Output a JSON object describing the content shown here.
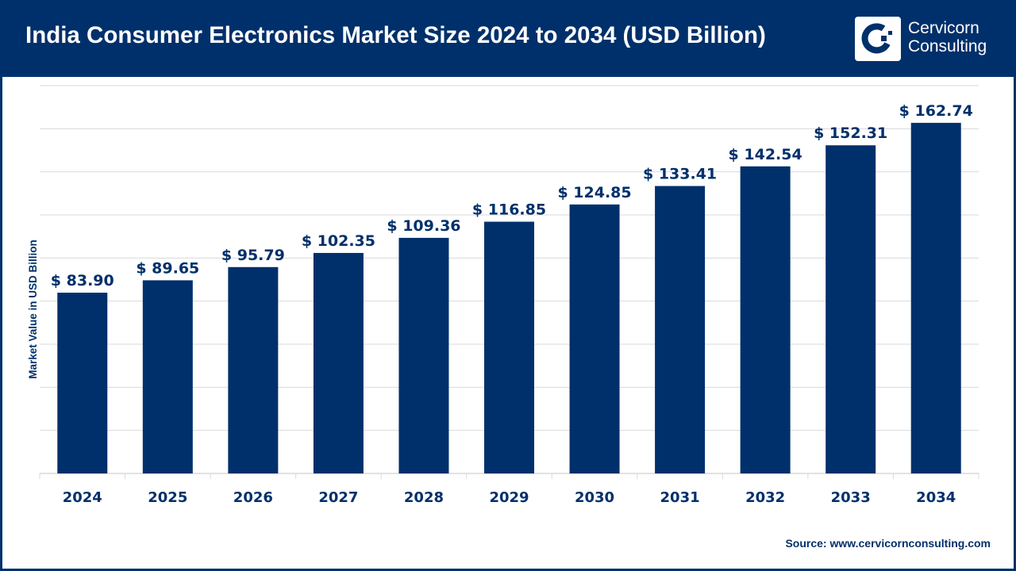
{
  "header": {
    "title": "India Consumer Electronics Market Size 2024 to 2034 (USD Billion)"
  },
  "logo": {
    "line1": "Cervicorn",
    "line2": "Consulting"
  },
  "source": "Source: www.cervicornconsulting.com",
  "colors": {
    "primary": "#00306b",
    "grid": "#d9d9d9"
  },
  "chart_data": {
    "type": "bar",
    "title": "India Consumer Electronics Market Size 2024 to 2034 (USD Billion)",
    "xlabel": "",
    "ylabel": "Market Value in USD Billion",
    "categories": [
      "2024",
      "2025",
      "2026",
      "2027",
      "2028",
      "2029",
      "2030",
      "2031",
      "2032",
      "2033",
      "2034"
    ],
    "values": [
      83.9,
      89.65,
      95.79,
      102.35,
      109.36,
      116.85,
      124.85,
      133.41,
      142.54,
      152.31,
      162.74
    ],
    "data_labels": [
      "$ 83.90",
      "$ 89.65",
      "$ 95.79",
      "$ 102.35",
      "$ 109.36",
      "$ 116.85",
      "$ 124.85",
      "$ 133.41",
      "$ 142.54",
      "$ 152.31",
      "$ 162.74"
    ],
    "ylim": [
      0,
      180
    ],
    "grid": true,
    "y_tick_labels_shown": false,
    "legend": "none"
  }
}
